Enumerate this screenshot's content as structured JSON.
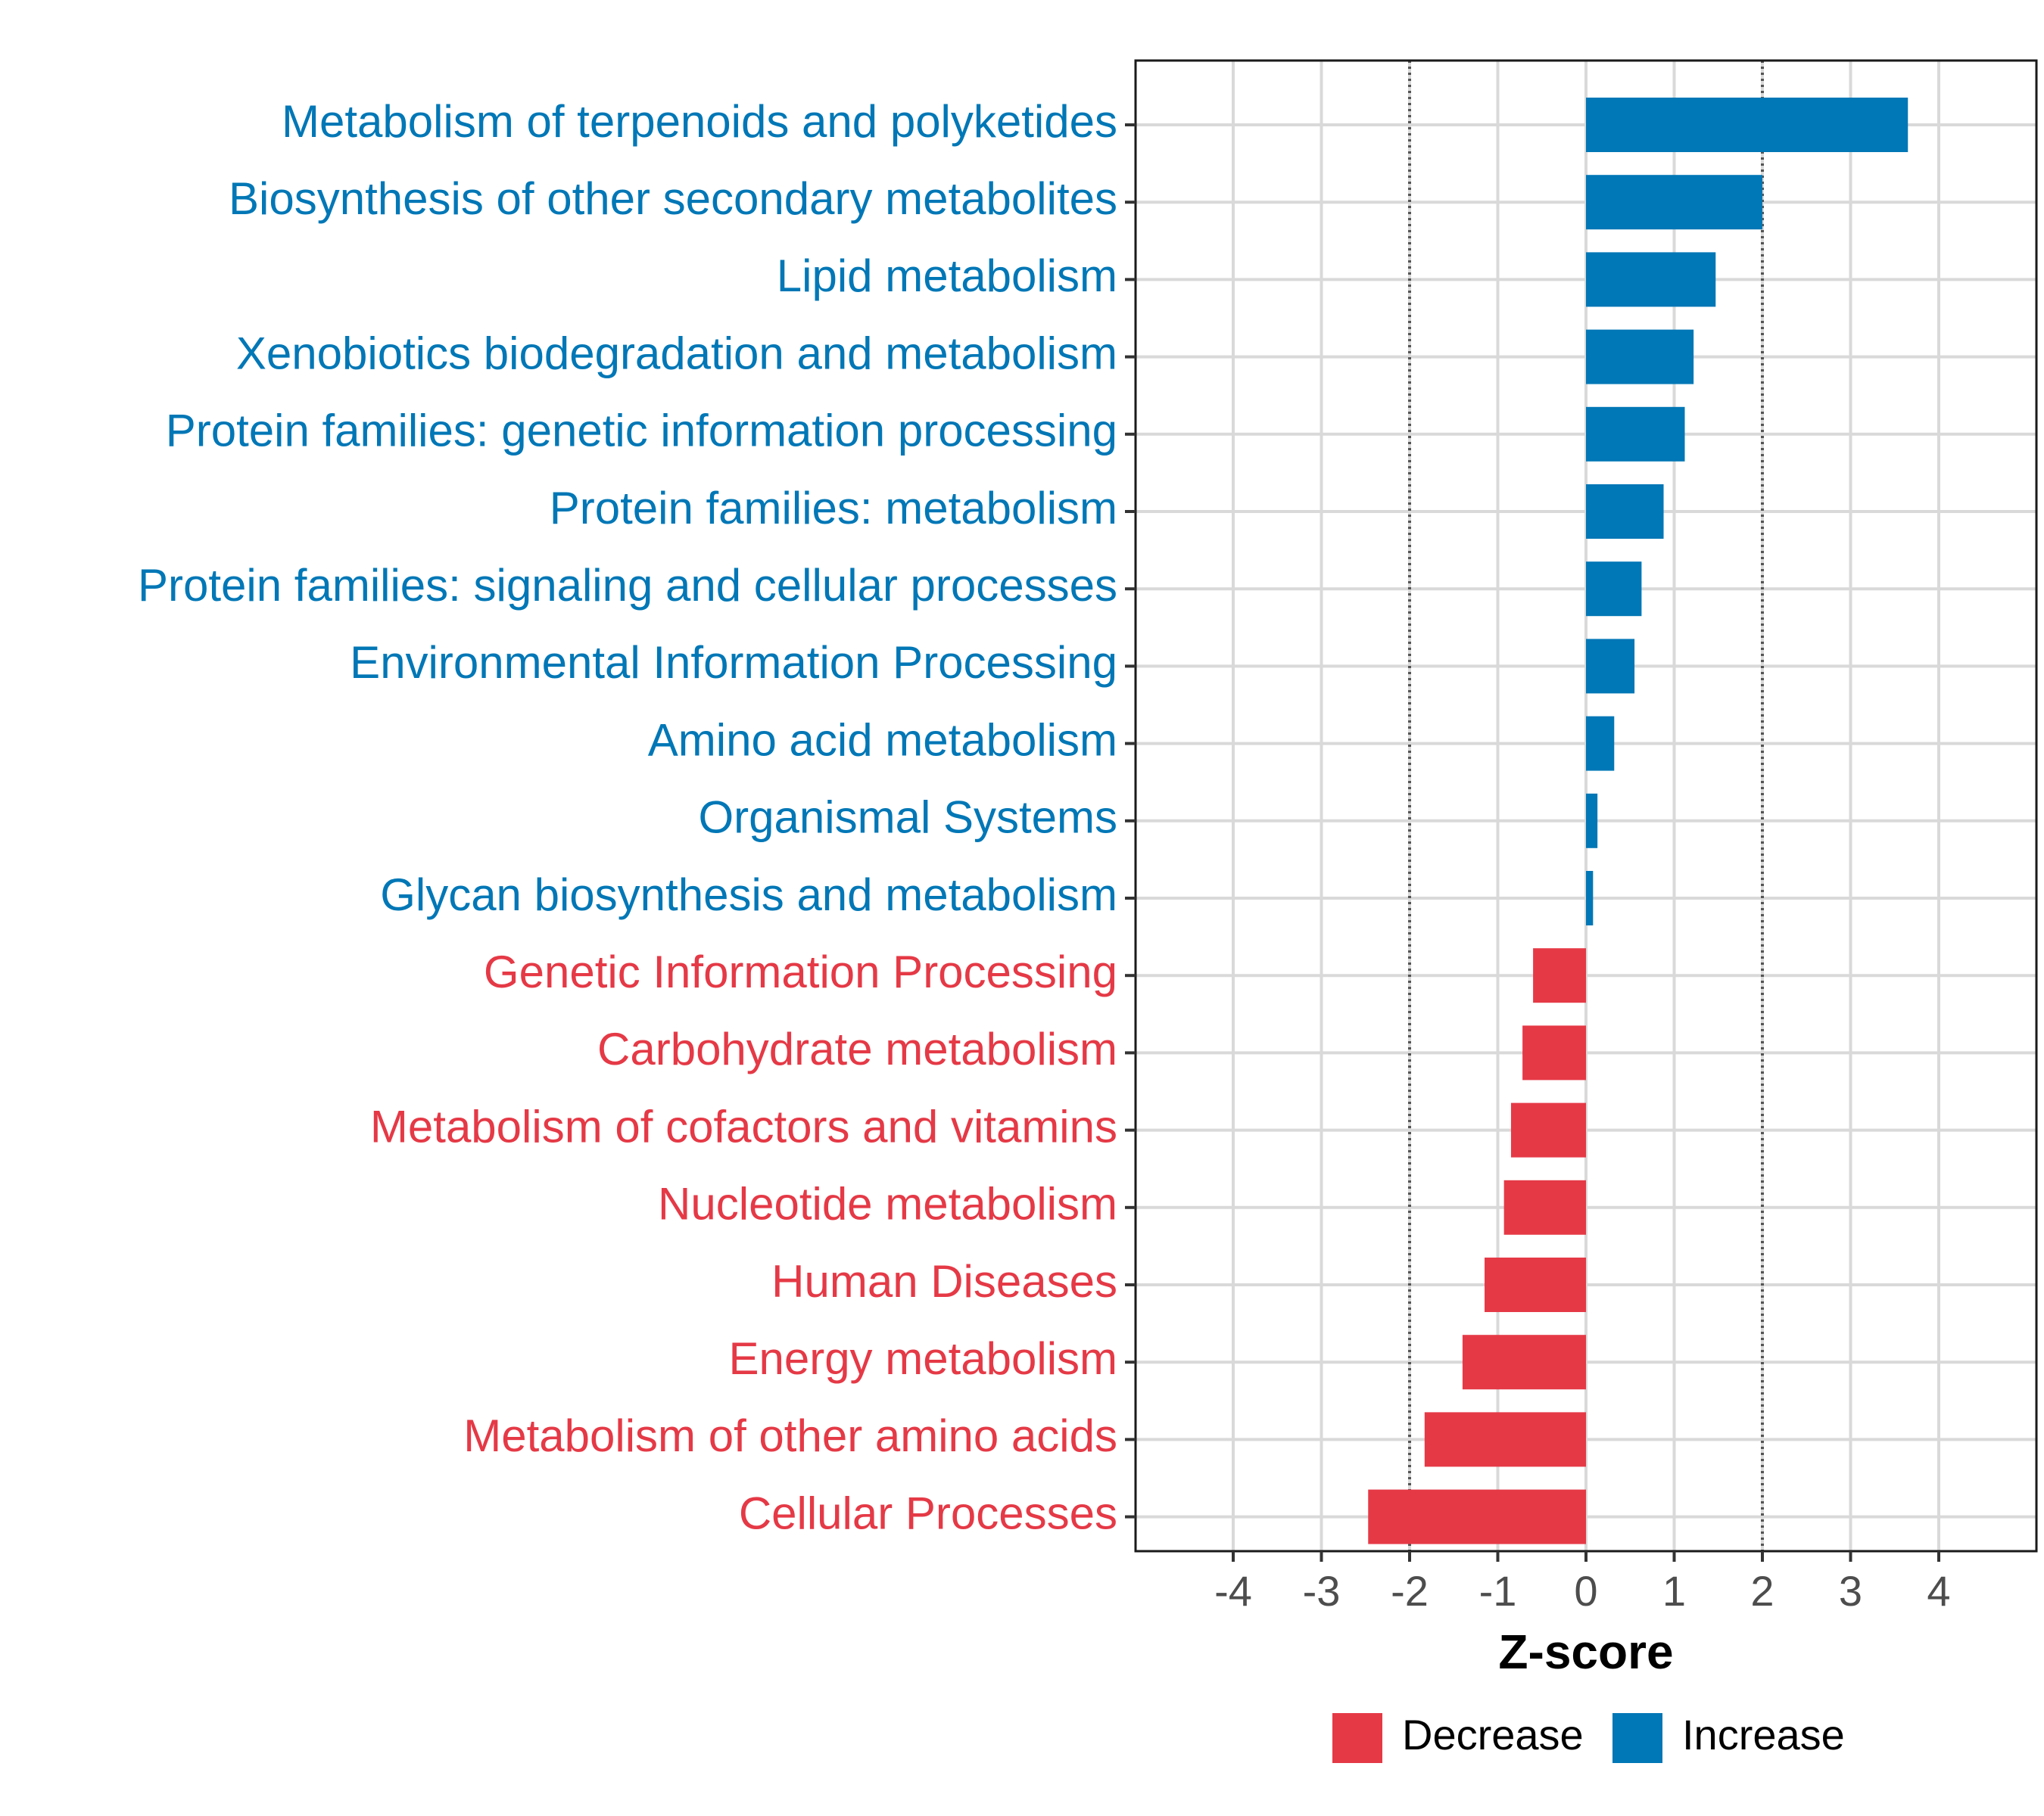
{
  "chart_data": {
    "type": "bar",
    "orientation": "horizontal",
    "title": "",
    "xlabel": "Z-score",
    "ylabel": "",
    "xlim": [
      -5,
      5.2
    ],
    "xticks": [
      -4,
      -3,
      -2,
      -1,
      0,
      1,
      2,
      3,
      4
    ],
    "xtick_labels": [
      "-4",
      "-3",
      "-2",
      "-1",
      "0",
      "1",
      "2",
      "3",
      "4"
    ],
    "reference_lines": [
      -2,
      2
    ],
    "grid": true,
    "legend_position": "bottom",
    "colors": {
      "Decrease": "#E53946",
      "Increase": "#0077B6"
    },
    "legend": [
      {
        "label": "Decrease",
        "color": "#E53946"
      },
      {
        "label": "Increase",
        "color": "#0077B6"
      }
    ],
    "categories": [
      "Metabolism of terpenoids and polyketides",
      "Biosynthesis of other secondary metabolites",
      "Lipid metabolism",
      "Xenobiotics biodegradation and metabolism",
      "Protein families: genetic information processing",
      "Protein families: metabolism",
      "Protein families: signaling and cellular processes",
      "Environmental Information Processing",
      "Amino acid metabolism",
      "Organismal Systems",
      "Glycan biosynthesis and metabolism",
      "Genetic Information Processing",
      "Carbohydrate metabolism",
      "Metabolism of cofactors and vitamins",
      "Nucleotide metabolism",
      "Human Diseases",
      "Energy metabolism",
      "Metabolism of other amino acids",
      "Cellular Processes"
    ],
    "values": [
      3.65,
      2.0,
      1.47,
      1.22,
      1.12,
      0.88,
      0.63,
      0.55,
      0.32,
      0.13,
      0.08,
      -0.6,
      -0.72,
      -0.85,
      -0.93,
      -1.15,
      -1.4,
      -1.83,
      -2.47
    ],
    "groups": [
      "Increase",
      "Increase",
      "Increase",
      "Increase",
      "Increase",
      "Increase",
      "Increase",
      "Increase",
      "Increase",
      "Increase",
      "Increase",
      "Decrease",
      "Decrease",
      "Decrease",
      "Decrease",
      "Decrease",
      "Decrease",
      "Decrease",
      "Decrease"
    ]
  }
}
